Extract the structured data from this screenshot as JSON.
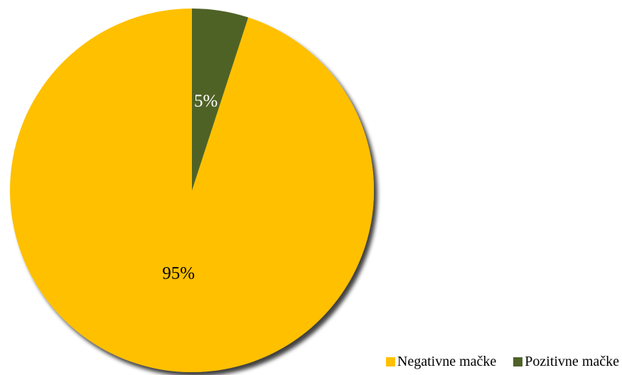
{
  "chart_data": {
    "type": "pie",
    "title": "",
    "start_angle_deg": 0,
    "direction": "counterclockwise",
    "slices": [
      {
        "label": "Negativne mačke",
        "value": 95,
        "data_label": "95%",
        "color": "#FFC000"
      },
      {
        "label": "Pozitivne mačke",
        "value": 5,
        "data_label": "5%",
        "color": "#4F6228"
      }
    ],
    "data_label_colors": [
      "#000000",
      "#ffffff"
    ],
    "shadow": true,
    "legend": {
      "position": "bottom-right",
      "entries": [
        "Negativne mačke",
        "Pozitivne mačke"
      ]
    }
  }
}
